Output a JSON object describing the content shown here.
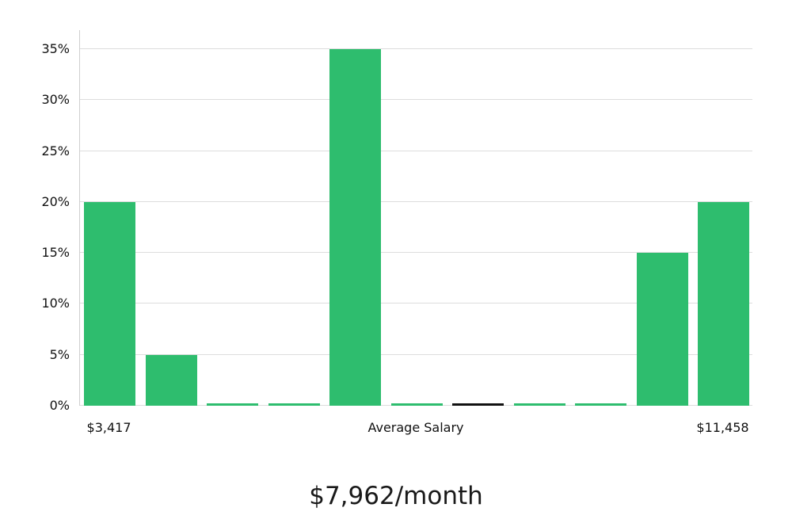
{
  "chart_data": {
    "type": "bar",
    "title": "$7,962/month",
    "categories": [
      "$3,417",
      "",
      "",
      "",
      "",
      "Average Salary",
      "",
      "",
      "",
      "",
      "$11,458"
    ],
    "values": [
      20,
      5,
      0.2,
      0.2,
      35,
      0.2,
      0.2,
      0.2,
      0.2,
      15,
      20
    ],
    "bar_colors": [
      "#2ebd6e",
      "#2ebd6e",
      "#2ebd6e",
      "#2ebd6e",
      "#2ebd6e",
      "#2ebd6e",
      "#111111",
      "#2ebd6e",
      "#2ebd6e",
      "#2ebd6e",
      "#2ebd6e"
    ],
    "xlabel": "",
    "ylabel": "",
    "ylim": [
      0,
      36.9
    ],
    "yticks": [
      0,
      5,
      10,
      15,
      20,
      25,
      30,
      35
    ],
    "ytick_labels": [
      "0%",
      "5%",
      "10%",
      "15%",
      "20%",
      "25%",
      "30%",
      "35%"
    ],
    "grid": true,
    "legend": "none",
    "accent_color": "#2ebd6e",
    "average_marker_color": "#111111",
    "grid_color": "#dddddd",
    "axis_color": "#cfcfcf",
    "text_color": "#111111"
  }
}
